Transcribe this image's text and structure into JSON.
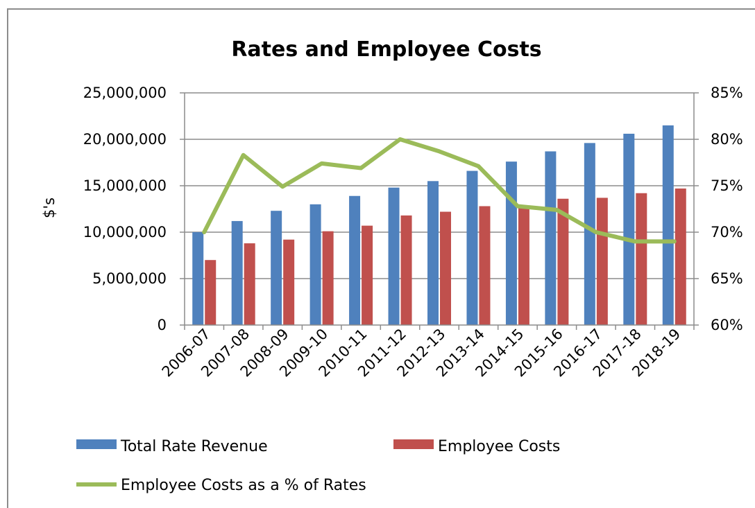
{
  "chart_data": {
    "type": "bar",
    "title": "Rates and Employee Costs",
    "xlabel": "",
    "ylabel": "$'s",
    "categories": [
      "2006-07",
      "2007-08",
      "2008-09",
      "2009-10",
      "2010-11",
      "2011-12",
      "2012-13",
      "2013-14",
      "2014-15",
      "2015-16",
      "2016-17",
      "2017-18",
      "2018-19"
    ],
    "ylim": [
      0,
      25000000
    ],
    "y_ticks": [
      "0",
      "5,000,000",
      "10,000,000",
      "15,000,000",
      "20,000,000",
      "25,000,000"
    ],
    "y2lim": [
      0.6,
      0.85
    ],
    "y2_ticks": [
      "60%",
      "65%",
      "70%",
      "75%",
      "80%",
      "85%"
    ],
    "gridlines": true,
    "legend_position": "bottom",
    "series": [
      {
        "name": "Total Rate Revenue",
        "type": "bar",
        "axis": "left",
        "color": "#4f81bd",
        "values": [
          10000000,
          11200000,
          12300000,
          13000000,
          13900000,
          14800000,
          15500000,
          16600000,
          17600000,
          18700000,
          19600000,
          20600000,
          21500000
        ]
      },
      {
        "name": "Employee Costs",
        "type": "bar",
        "axis": "left",
        "color": "#c0504d",
        "values": [
          7000000,
          8800000,
          9200000,
          10100000,
          10700000,
          11800000,
          12200000,
          12800000,
          12800000,
          13600000,
          13700000,
          14200000,
          14700000
        ]
      },
      {
        "name": "Employee Costs as a % of Rates",
        "type": "line",
        "axis": "right",
        "color": "#9bbb59",
        "values": [
          0.7,
          0.783,
          0.749,
          0.774,
          0.769,
          0.8,
          0.787,
          0.771,
          0.728,
          0.724,
          0.7,
          0.69,
          0.69
        ]
      }
    ]
  }
}
